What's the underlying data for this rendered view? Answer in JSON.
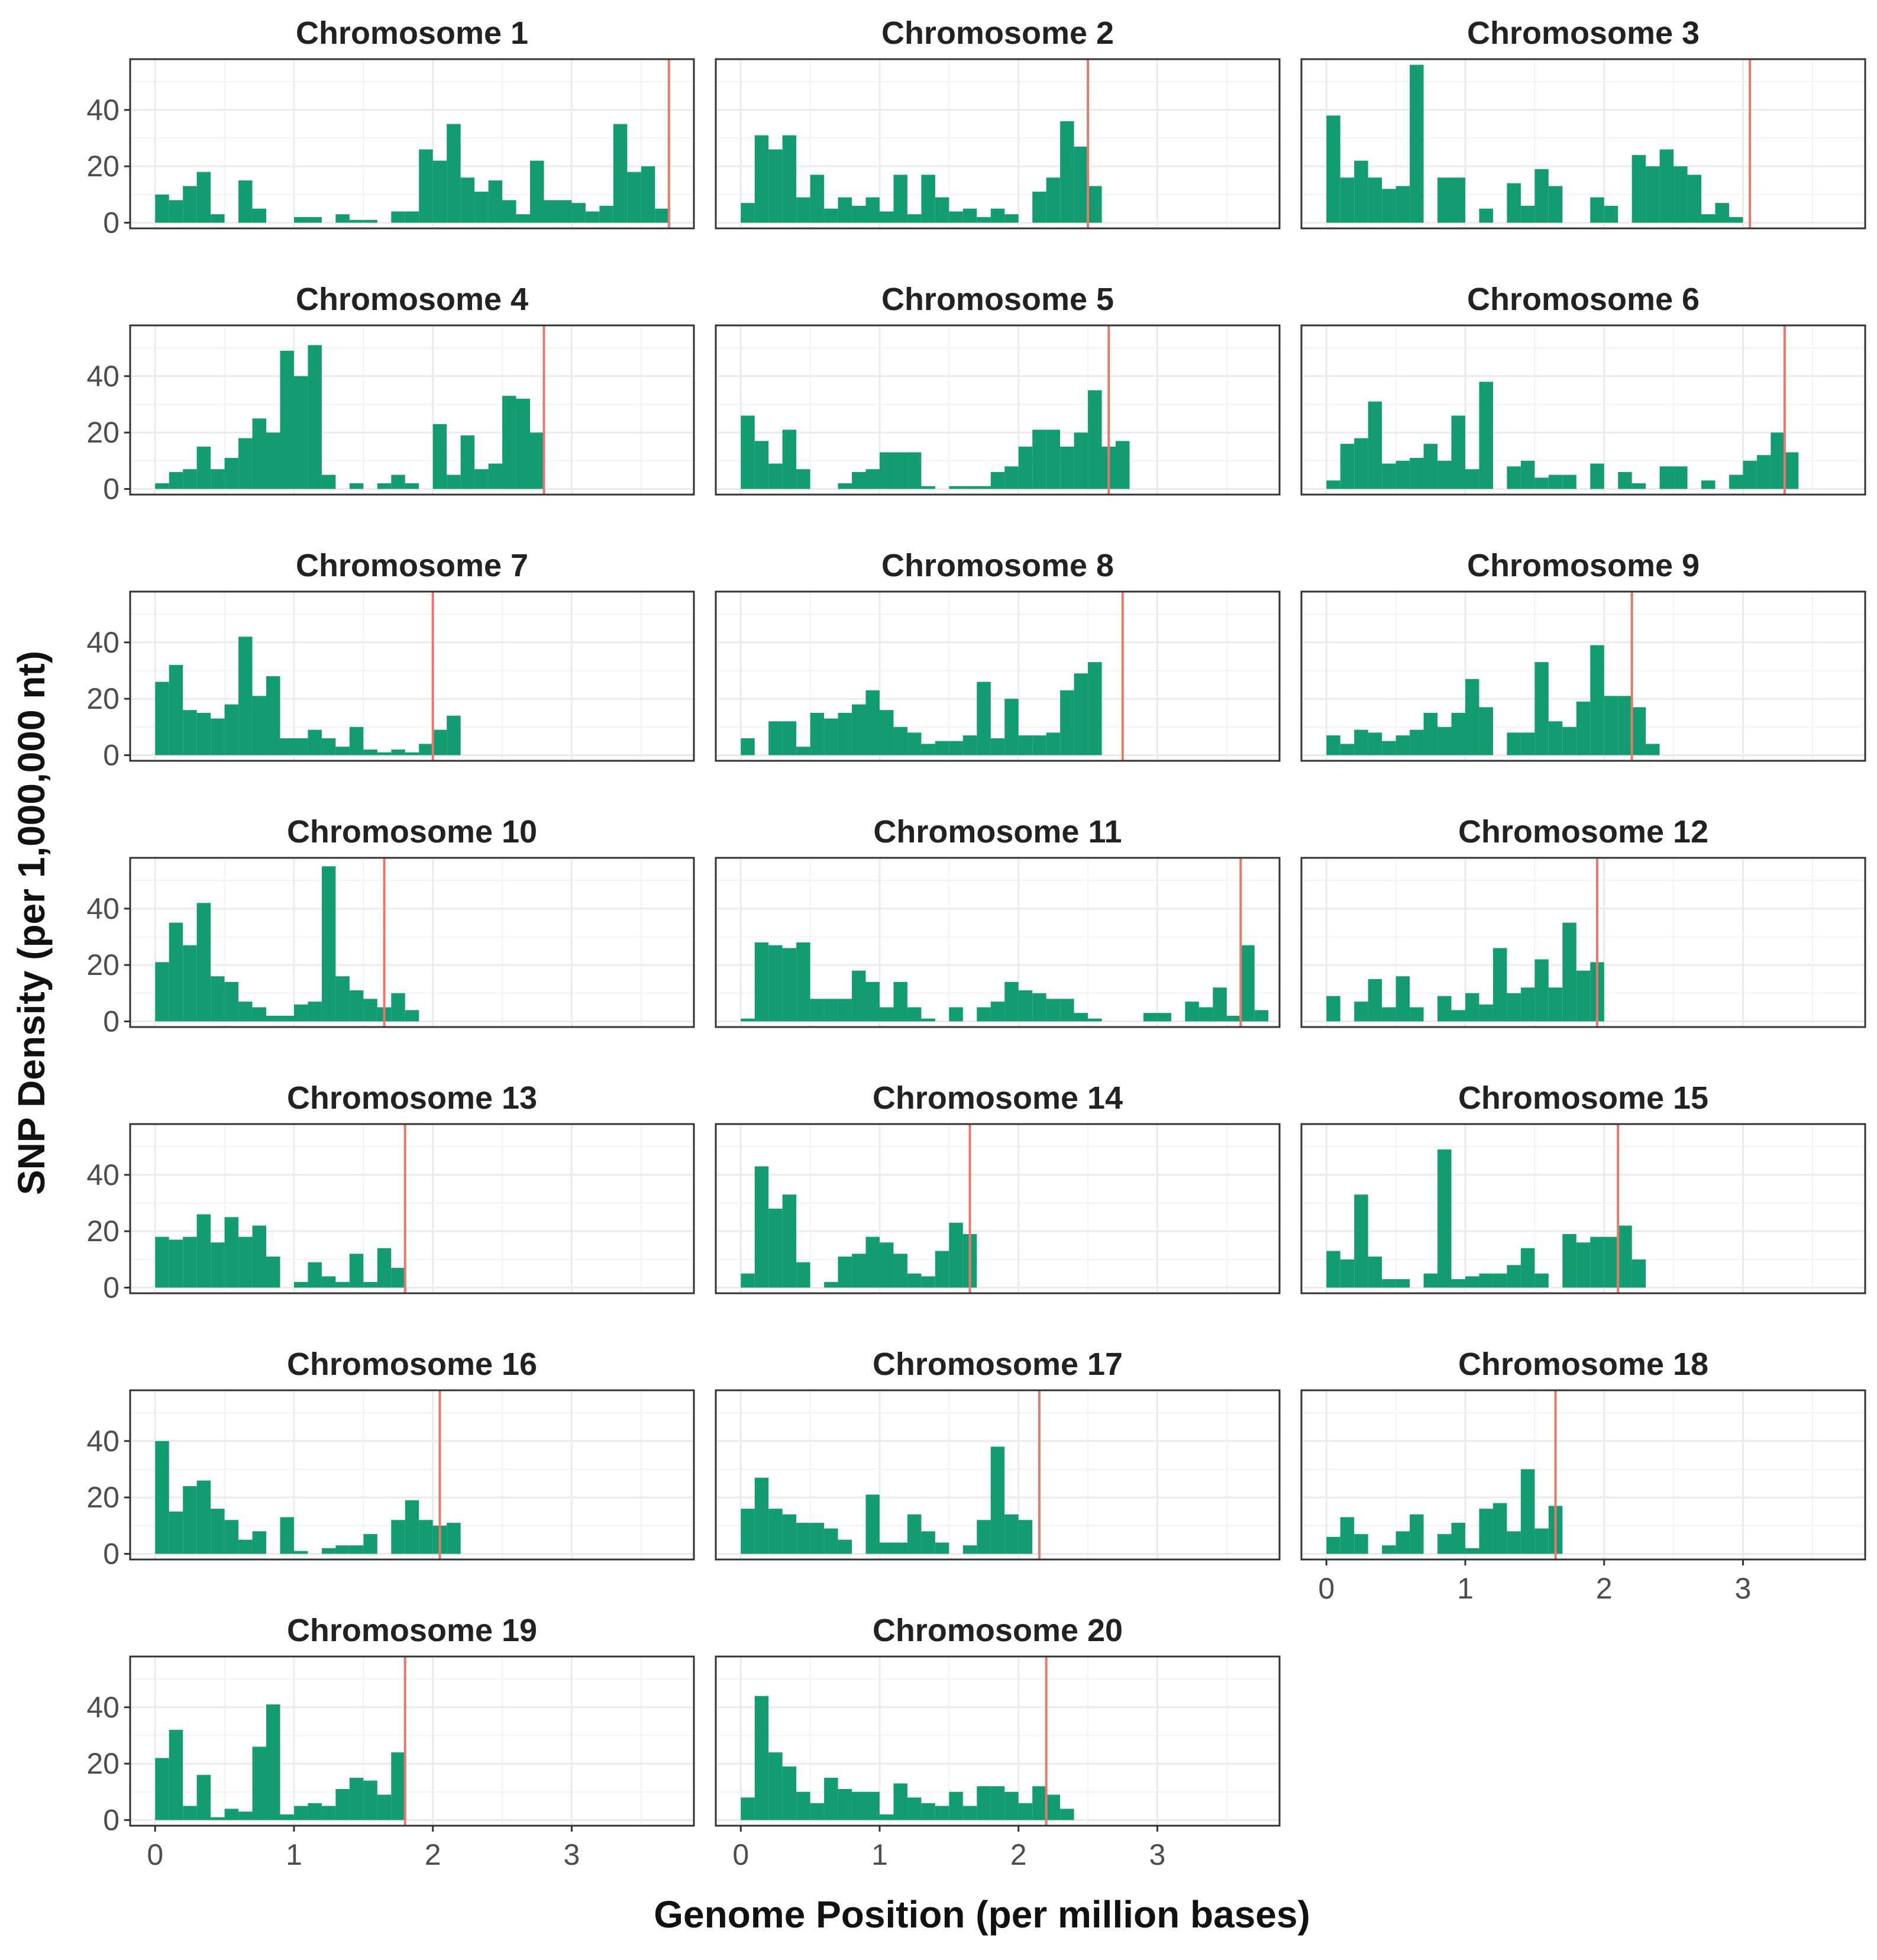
{
  "chart_data": {
    "type": "bar",
    "xlabel": "Genome Position (per million bases)",
    "ylabel": "SNP Density (per 1,000,000 nt)",
    "xlim": [
      -0.18,
      3.88
    ],
    "ylim": [
      -2,
      58
    ],
    "xticks": [
      0,
      1,
      2,
      3
    ],
    "yticks": [
      0,
      20,
      40
    ],
    "bin_width": 0.1,
    "colors": {
      "bar": "#139C71",
      "centromere_line": "#E8786C",
      "grid": "#EBEBEB",
      "panel_border": "#333333",
      "text": "#222222"
    },
    "panels": [
      {
        "title": "Chromosome 1",
        "line_x": 3.7,
        "start": 0.0,
        "values": [
          10,
          8,
          13,
          18,
          3,
          0,
          15,
          5,
          0,
          0,
          2,
          2,
          0,
          3,
          1,
          1,
          0,
          4,
          4,
          26,
          22,
          35,
          16,
          11,
          15,
          8,
          3,
          22,
          8,
          8,
          7,
          4,
          6,
          35,
          18,
          20,
          5
        ]
      },
      {
        "title": "Chromosome 2",
        "line_x": 2.5,
        "start": 0.0,
        "values": [
          7,
          31,
          26,
          31,
          9,
          17,
          5,
          9,
          6,
          9,
          4,
          17,
          3,
          17,
          9,
          4,
          5,
          2,
          5,
          3,
          0,
          11,
          16,
          36,
          27,
          13
        ]
      },
      {
        "title": "Chromosome 3",
        "line_x": 3.05,
        "start": 0.0,
        "values": [
          38,
          16,
          22,
          16,
          12,
          13,
          56,
          0,
          16,
          16,
          0,
          5,
          0,
          14,
          6,
          19,
          13,
          0,
          0,
          9,
          6,
          0,
          24,
          20,
          26,
          20,
          17,
          3,
          7,
          2
        ]
      },
      {
        "title": "Chromosome 4",
        "line_x": 2.8,
        "start": 0.0,
        "values": [
          2,
          6,
          7,
          15,
          7,
          11,
          18,
          25,
          20,
          49,
          40,
          51,
          5,
          0,
          2,
          0,
          2,
          5,
          2,
          0,
          23,
          5,
          19,
          7,
          9,
          33,
          32,
          20
        ]
      },
      {
        "title": "Chromosome 5",
        "line_x": 2.65,
        "start": 0.0,
        "values": [
          26,
          17,
          9,
          21,
          7,
          0,
          0,
          2,
          6,
          7,
          13,
          13,
          13,
          1,
          0,
          1,
          1,
          1,
          6,
          8,
          15,
          21,
          21,
          15,
          20,
          35,
          15,
          17
        ]
      },
      {
        "title": "Chromosome 6",
        "line_x": 3.3,
        "start": 0.0,
        "values": [
          3,
          16,
          18,
          31,
          9,
          10,
          11,
          16,
          10,
          26,
          7,
          38,
          0,
          8,
          10,
          4,
          5,
          5,
          0,
          9,
          0,
          6,
          2,
          0,
          8,
          8,
          0,
          3,
          0,
          5,
          10,
          12,
          20,
          13
        ]
      },
      {
        "title": "Chromosome 7",
        "line_x": 2.0,
        "start": 0.0,
        "values": [
          26,
          32,
          16,
          15,
          13,
          18,
          42,
          21,
          28,
          6,
          6,
          9,
          6,
          3,
          10,
          2,
          1,
          2,
          1,
          4,
          9,
          14
        ]
      },
      {
        "title": "Chromosome 8",
        "line_x": 2.75,
        "start": 0.0,
        "values": [
          6,
          0,
          12,
          12,
          3,
          15,
          13,
          15,
          18,
          23,
          16,
          10,
          8,
          4,
          5,
          5,
          7,
          26,
          6,
          20,
          7,
          7,
          8,
          23,
          29,
          33
        ]
      },
      {
        "title": "Chromosome 9",
        "line_x": 2.2,
        "start": 0.0,
        "values": [
          7,
          4,
          9,
          8,
          5,
          7,
          9,
          15,
          10,
          15,
          27,
          17,
          0,
          8,
          8,
          33,
          12,
          10,
          19,
          39,
          21,
          21,
          17,
          4
        ]
      },
      {
        "title": "Chromosome 10",
        "line_x": 1.65,
        "start": 0.0,
        "values": [
          21,
          35,
          27,
          42,
          16,
          14,
          7,
          5,
          2,
          2,
          6,
          7,
          55,
          16,
          11,
          8,
          5,
          10,
          4
        ]
      },
      {
        "title": "Chromosome 11",
        "line_x": 3.6,
        "start": 0.0,
        "values": [
          1,
          28,
          27,
          26,
          28,
          8,
          8,
          8,
          18,
          14,
          5,
          14,
          5,
          1,
          0,
          5,
          0,
          5,
          7,
          14,
          11,
          10,
          8,
          8,
          3,
          1,
          0,
          0,
          0,
          3,
          3,
          0,
          7,
          5,
          12,
          2,
          27,
          4
        ]
      },
      {
        "title": "Chromosome 12",
        "line_x": 1.95,
        "start": 0.0,
        "values": [
          9,
          0,
          7,
          15,
          5,
          16,
          5,
          0,
          9,
          4,
          10,
          6,
          26,
          10,
          12,
          22,
          12,
          35,
          18,
          21
        ]
      },
      {
        "title": "Chromosome 13",
        "line_x": 1.8,
        "start": 0.0,
        "values": [
          18,
          17,
          18,
          26,
          16,
          25,
          18,
          22,
          11,
          0,
          2,
          9,
          4,
          2,
          12,
          2,
          14,
          7
        ]
      },
      {
        "title": "Chromosome 14",
        "line_x": 1.65,
        "start": 0.0,
        "values": [
          5,
          43,
          28,
          33,
          9,
          0,
          2,
          11,
          12,
          18,
          16,
          12,
          5,
          4,
          13,
          23,
          19
        ]
      },
      {
        "title": "Chromosome 15",
        "line_x": 2.1,
        "start": 0.0,
        "values": [
          13,
          10,
          33,
          11,
          3,
          3,
          0,
          5,
          49,
          3,
          4,
          5,
          5,
          8,
          14,
          5,
          0,
          19,
          16,
          18,
          18,
          22,
          10
        ]
      },
      {
        "title": "Chromosome 16",
        "line_x": 2.05,
        "start": 0.0,
        "values": [
          40,
          15,
          24,
          26,
          16,
          12,
          5,
          8,
          0,
          13,
          1,
          0,
          2,
          3,
          3,
          7,
          0,
          12,
          19,
          12,
          10,
          11
        ]
      },
      {
        "title": "Chromosome 17",
        "line_x": 2.15,
        "start": 0.0,
        "values": [
          16,
          27,
          16,
          14,
          11,
          11,
          9,
          5,
          0,
          21,
          4,
          4,
          14,
          8,
          4,
          0,
          3,
          12,
          38,
          14,
          12
        ]
      },
      {
        "title": "Chromosome 18",
        "line_x": 1.65,
        "start": 0.0,
        "values": [
          6,
          13,
          7,
          0,
          3,
          8,
          14,
          0,
          7,
          11,
          2,
          16,
          18,
          8,
          30,
          9,
          17
        ]
      },
      {
        "title": "Chromosome 19",
        "line_x": 1.8,
        "start": 0.0,
        "values": [
          22,
          32,
          5,
          16,
          1,
          4,
          3,
          26,
          41,
          2,
          5,
          6,
          5,
          11,
          15,
          14,
          9,
          24
        ]
      },
      {
        "title": "Chromosome 20",
        "line_x": 2.2,
        "start": 0.0,
        "values": [
          8,
          44,
          24,
          19,
          10,
          6,
          15,
          11,
          10,
          10,
          2,
          13,
          8,
          6,
          5,
          10,
          5,
          12,
          12,
          10,
          6,
          12,
          9,
          4
        ]
      }
    ]
  }
}
